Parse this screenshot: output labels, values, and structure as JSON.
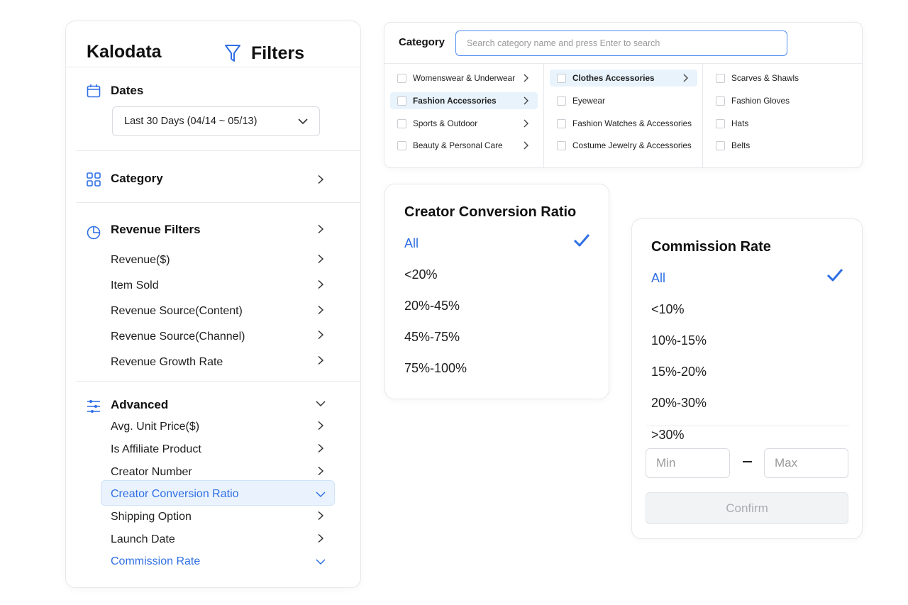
{
  "app": {
    "brand": "Kalodata",
    "panel_title": "Filters"
  },
  "dates": {
    "title": "Dates",
    "selected": "Last 30 Days (04/14 ~ 05/13)"
  },
  "category_section": {
    "title": "Category"
  },
  "revenue_filters": {
    "title": "Revenue Filters",
    "items": [
      "Revenue($)",
      "Item Sold",
      "Revenue Source(Content)",
      "Revenue Source(Channel)",
      "Revenue Growth Rate"
    ]
  },
  "advanced": {
    "title": "Advanced",
    "items": [
      "Avg. Unit Price($)",
      "Is Affiliate Product",
      "Creator Number",
      "Creator Conversion Ratio",
      "Shipping Option",
      "Launch Date",
      "Commission Rate"
    ]
  },
  "category_panel": {
    "label": "Category",
    "search_placeholder": "Search category name and press Enter to search",
    "col1": [
      "Womenswear & Underwear",
      "Fashion Accessories",
      "Sports & Outdoor",
      "Beauty & Personal Care"
    ],
    "col2": [
      "Clothes Accessories",
      "Eyewear",
      "Fashion Watches & Accessories",
      "Costume Jewelry & Accessories"
    ],
    "col3": [
      "Scarves & Shawls",
      "Fashion Gloves",
      "Hats",
      "Belts"
    ]
  },
  "creator_conversion": {
    "title": "Creator Conversion Ratio",
    "options": [
      "All",
      "<20%",
      "20%-45%",
      "45%-75%",
      "75%-100%"
    ],
    "selected": "All"
  },
  "commission_rate": {
    "title": "Commission Rate",
    "options": [
      "All",
      "<10%",
      "10%-15%",
      "15%-20%",
      "20%-30%",
      ">30%"
    ],
    "selected": "All",
    "min_placeholder": "Min",
    "max_placeholder": "Max",
    "confirm_label": "Confirm"
  },
  "colors": {
    "accent": "#2f6fe4",
    "highlight": "#eaf3fd"
  }
}
